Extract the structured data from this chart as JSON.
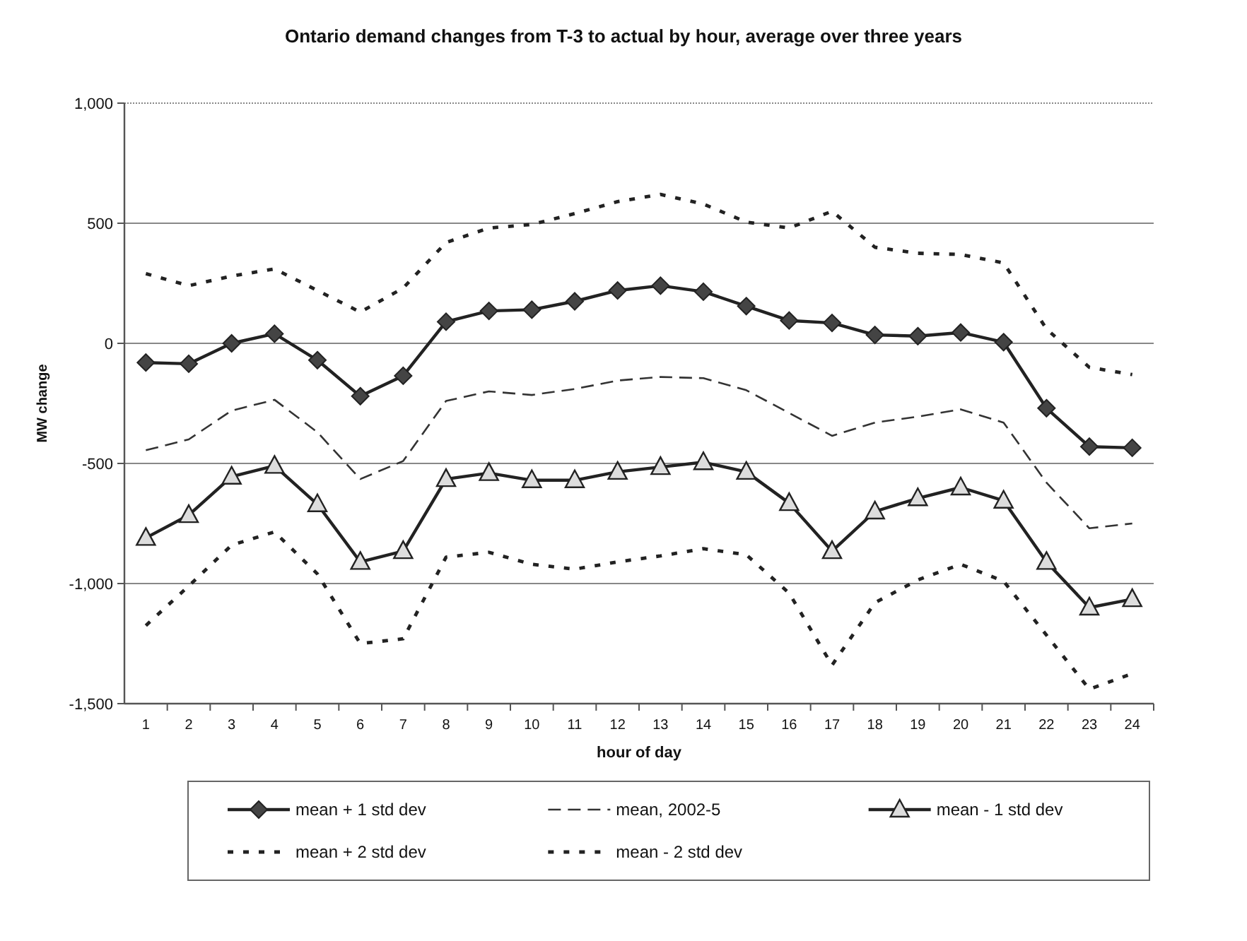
{
  "chart_data": {
    "type": "line",
    "title": "Ontario demand changes from T-3 to actual by hour, average over three years",
    "xlabel": "hour of day",
    "ylabel": "MW change",
    "categories": [
      "1",
      "2",
      "3",
      "4",
      "5",
      "6",
      "7",
      "8",
      "9",
      "10",
      "11",
      "12",
      "13",
      "14",
      "15",
      "16",
      "17",
      "18",
      "19",
      "20",
      "21",
      "22",
      "23",
      "24"
    ],
    "ylim": [
      -1500,
      1000
    ],
    "yticks": [
      {
        "value": -1500,
        "label": "-1,500"
      },
      {
        "value": -1000,
        "label": "-1,000"
      },
      -500,
      0,
      500,
      {
        "value": 1000,
        "label": "1,000"
      }
    ],
    "grid": "y",
    "legend": "bottom",
    "series": [
      {
        "name": "mean + 1 std dev",
        "color": "#222222",
        "marker": "diamond",
        "line_style": "solid",
        "values": [
          -80,
          -85,
          0,
          40,
          -70,
          -220,
          -135,
          90,
          135,
          140,
          175,
          220,
          240,
          215,
          155,
          95,
          85,
          35,
          30,
          45,
          5,
          -270,
          -430,
          -435
        ]
      },
      {
        "name": "mean, 2002-5",
        "color": "#333333",
        "marker": "none",
        "line_style": "dashed",
        "values": [
          -445,
          -400,
          -280,
          -235,
          -370,
          -565,
          -490,
          -240,
          -200,
          -215,
          -190,
          -155,
          -140,
          -145,
          -195,
          -290,
          -385,
          -330,
          -305,
          -275,
          -330,
          -580,
          -770,
          -750
        ]
      },
      {
        "name": "mean - 1 std dev",
        "color": "#222222",
        "marker": "triangle",
        "line_style": "solid",
        "values": [
          -810,
          -715,
          -555,
          -510,
          -670,
          -910,
          -865,
          -565,
          -540,
          -570,
          -570,
          -535,
          -515,
          -495,
          -535,
          -665,
          -865,
          -700,
          -645,
          -600,
          -655,
          -910,
          -1100,
          -1065
        ]
      },
      {
        "name": "mean + 2 std dev",
        "color": "#222222",
        "marker": "none",
        "line_style": "dotted",
        "values": [
          290,
          240,
          280,
          310,
          220,
          130,
          230,
          420,
          480,
          495,
          540,
          590,
          620,
          580,
          505,
          480,
          550,
          400,
          375,
          370,
          335,
          60,
          -100,
          -130
        ]
      },
      {
        "name": "mean - 2 std dev",
        "color": "#222222",
        "marker": "none",
        "line_style": "dotted",
        "values": [
          -1175,
          -1010,
          -840,
          -785,
          -960,
          -1250,
          -1230,
          -890,
          -870,
          -920,
          -940,
          -910,
          -885,
          -855,
          -880,
          -1040,
          -1340,
          -1080,
          -985,
          -920,
          -990,
          -1215,
          -1440,
          -1375
        ]
      }
    ]
  }
}
